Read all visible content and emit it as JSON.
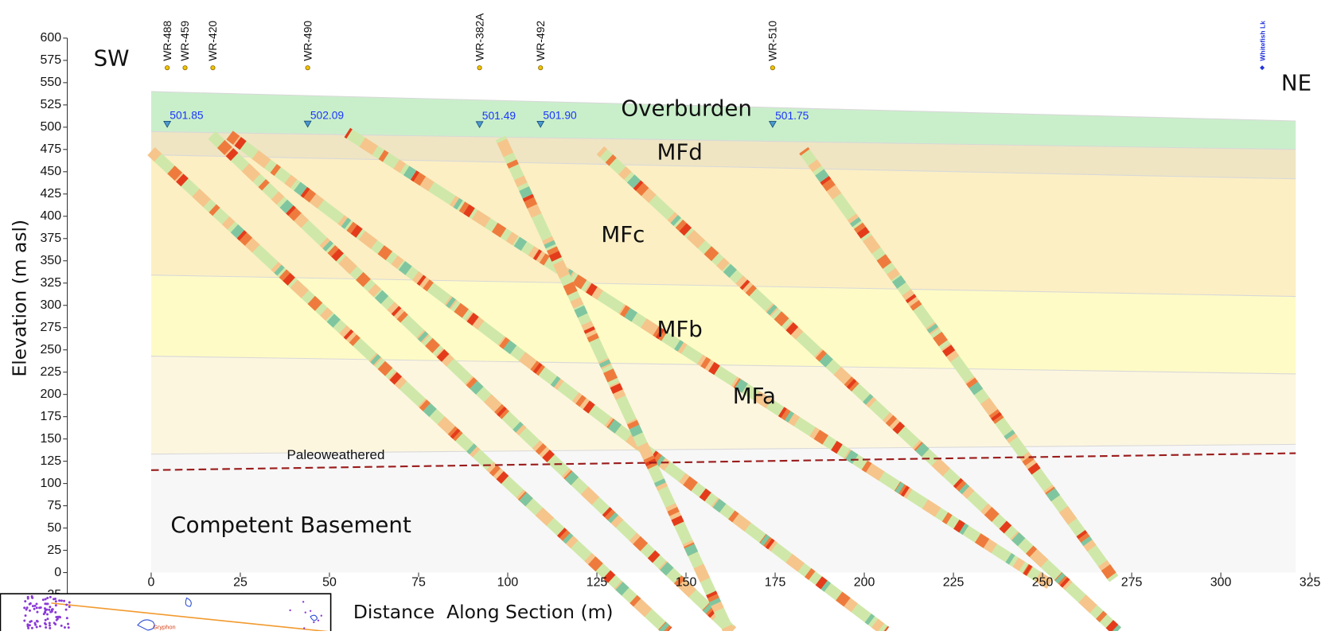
{
  "chart_data": {
    "type": "cross-section",
    "y_label": "Elevation (m asl)",
    "x_label": "Distance  Along Section (m)",
    "side_labels": [
      "SW",
      "NE"
    ],
    "xlim": [
      0,
      325
    ],
    "ylim": [
      -25,
      600
    ],
    "xticks": [
      0,
      25,
      50,
      75,
      100,
      125,
      150,
      175,
      200,
      225,
      250,
      275,
      300,
      325
    ],
    "yticks": [
      -25,
      0,
      25,
      50,
      75,
      100,
      125,
      150,
      175,
      200,
      225,
      250,
      275,
      300,
      325,
      350,
      375,
      400,
      425,
      450,
      475,
      500,
      525,
      550,
      575,
      600
    ],
    "layer_x": [
      0,
      321
    ],
    "layers": [
      {
        "name": "Overburden",
        "color": "#c9efca",
        "top": [
          540,
          507
        ]
      },
      {
        "name": "MFd",
        "color": "#efe5c3",
        "top": [
          495,
          475
        ]
      },
      {
        "name": "MFc",
        "color": "#fcefc3",
        "top": [
          469,
          442
        ]
      },
      {
        "name": "MFb",
        "color": "#fefbc6",
        "top": [
          334,
          310
        ]
      },
      {
        "name": "MFa",
        "color": "#fdf6df",
        "top": [
          243,
          223
        ]
      },
      {
        "name": "Competent Basement",
        "color": "#f7f7f7",
        "top": [
          133,
          144
        ],
        "bottom": 0
      }
    ],
    "paleo": {
      "name": "Paleoweathered",
      "color": "#9b1c1c",
      "values": [
        115,
        134
      ]
    },
    "boreholes": {
      "names": [
        "WR-488",
        "WR-459",
        "WR-420",
        "WR-490",
        "WR-382A",
        "WR-492",
        "WR-510",
        "Whitefish Lk"
      ],
      "x": [
        4.5,
        9.5,
        17.3,
        43.9,
        92.1,
        109.2,
        174.3,
        311.6
      ]
    },
    "water_levels": {
      "x": [
        4.5,
        43.9,
        92.1,
        109.2,
        174.3
      ],
      "values": [
        501.85,
        502.09,
        501.49,
        501.9,
        501.75
      ],
      "value_labels": [
        "501.85",
        "502.09",
        "501.49",
        "501.90",
        "501.75"
      ]
    },
    "traces": [
      {
        "from": [
          0,
          473
        ],
        "to": [
          145,
          -66
        ]
      },
      {
        "from": [
          17,
          491
        ],
        "to": [
          163,
          -66
        ]
      },
      {
        "from": [
          22,
          491
        ],
        "to": [
          206,
          -66
        ]
      },
      {
        "from": [
          55,
          494
        ],
        "to": [
          252,
          -13
        ]
      },
      {
        "from": [
          98,
          488
        ],
        "to": [
          162,
          -66
        ]
      },
      {
        "from": [
          126,
          474
        ],
        "to": [
          271,
          -66
        ]
      },
      {
        "from": [
          183,
          474
        ],
        "to": [
          270,
          -7
        ]
      }
    ],
    "inset_label": "Gryphon"
  }
}
